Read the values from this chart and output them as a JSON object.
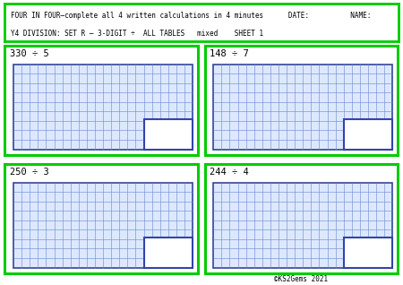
{
  "title_line1": "FOUR IN FOUR—complete all 4 written calculations in 4 minutes      DATE:          NAME:",
  "title_line2": "Y4 DIVISION: SET R — 3-DIGIT ÷  ALL TABLES   mixed    SHEET 1",
  "problems": [
    "330 ÷ 5",
    "148 ÷ 7",
    "250 ÷ 3",
    "244 ÷ 4"
  ],
  "header_box_color": "#00cc00",
  "problem_box_color": "#00cc00",
  "grid_bg_color": "#dde8ff",
  "grid_line_color": "#6688cc",
  "grid_border_color": "#334499",
  "answer_box_color": "#3344aa",
  "background_color": "white",
  "copyright": "©KS2Gems 2021",
  "header_fontsize": 5.5,
  "problem_fontsize": 7.5,
  "copyright_fontsize": 5.5,
  "n_cols": 22,
  "n_rows": 9
}
